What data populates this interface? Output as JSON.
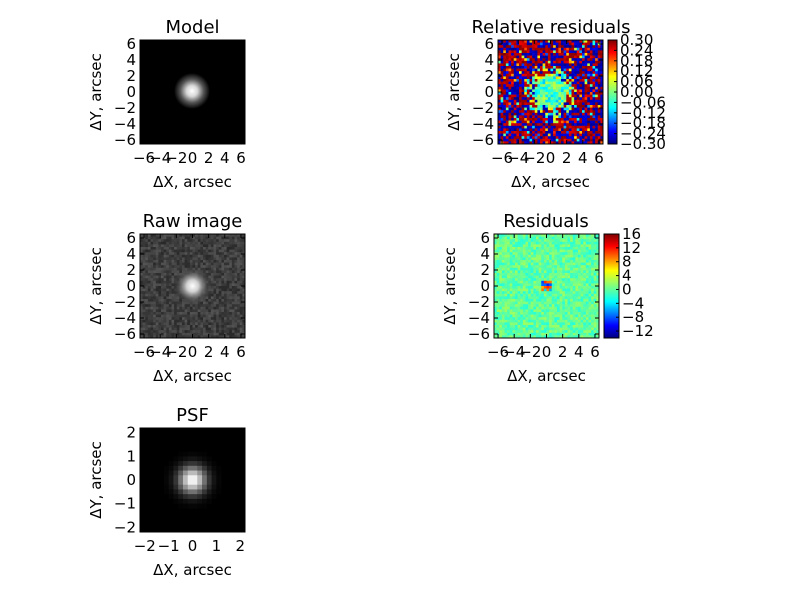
{
  "figure": {
    "colors": {
      "background": "#ffffff",
      "frame": "#000000"
    }
  },
  "chart_data": [
    {
      "id": "model",
      "type": "heatmap",
      "title": "Model",
      "xlabel_prefix": "ΔX",
      "xlabel_suffix": ", arcsec",
      "ylabel_prefix": "ΔY",
      "ylabel_suffix": ", arcsec",
      "xlim": [
        -6.5,
        6.5
      ],
      "ylim": [
        -6.5,
        6.5
      ],
      "xticks": [
        -6,
        -4,
        -2,
        0,
        2,
        4,
        6
      ],
      "yticks": [
        -6,
        -4,
        -2,
        0,
        2,
        4,
        6
      ],
      "xtick_labels": [
        "−6",
        "−4",
        "−2",
        "0",
        "2",
        "4",
        "6"
      ],
      "ytick_labels": [
        "−6",
        "−4",
        "−2",
        "0",
        "2",
        "4",
        "6"
      ],
      "colormap": "gray",
      "source_center": [
        0,
        0
      ],
      "source_sigma_arcsec": 0.9
    },
    {
      "id": "relres",
      "type": "heatmap",
      "title": "Relative residuals",
      "xlabel_prefix": "ΔX",
      "xlabel_suffix": ", arcsec",
      "ylabel_prefix": "ΔY",
      "ylabel_suffix": ", arcsec",
      "xlim": [
        -6.5,
        6.5
      ],
      "ylim": [
        -6.5,
        6.5
      ],
      "xticks": [
        -6,
        -4,
        -2,
        0,
        2,
        4,
        6
      ],
      "yticks": [
        -6,
        -4,
        -2,
        0,
        2,
        4,
        6
      ],
      "xtick_labels": [
        "−6",
        "−4",
        "−2",
        "0",
        "2",
        "4",
        "6"
      ],
      "ytick_labels": [
        "−6",
        "−4",
        "−2",
        "0",
        "2",
        "4",
        "6"
      ],
      "colormap": "jet",
      "colorbar": {
        "range": [
          -0.3,
          0.3
        ],
        "ticks": [
          0.3,
          0.24,
          0.18,
          0.12,
          0.06,
          0.0,
          -0.06,
          -0.12,
          -0.18,
          -0.24,
          -0.3
        ],
        "tick_labels": [
          "0.30",
          "0.24",
          "0.18",
          "0.12",
          "0.06",
          "0.00",
          "−0.06",
          "−0.12",
          "−0.18",
          "−0.24",
          "−0.30"
        ]
      }
    },
    {
      "id": "raw",
      "type": "heatmap",
      "title": "Raw image",
      "xlabel_prefix": "ΔX",
      "xlabel_suffix": ", arcsec",
      "ylabel_prefix": "ΔY",
      "ylabel_suffix": ", arcsec",
      "xlim": [
        -6.5,
        6.5
      ],
      "ylim": [
        -6.5,
        6.5
      ],
      "xticks": [
        -6,
        -4,
        -2,
        0,
        2,
        4,
        6
      ],
      "yticks": [
        -6,
        -4,
        -2,
        0,
        2,
        4,
        6
      ],
      "xtick_labels": [
        "−6",
        "−4",
        "−2",
        "0",
        "2",
        "4",
        "6"
      ],
      "ytick_labels": [
        "−6",
        "−4",
        "−2",
        "0",
        "2",
        "4",
        "6"
      ],
      "colormap": "gray",
      "source_center": [
        0,
        0
      ],
      "source_sigma_arcsec": 0.9
    },
    {
      "id": "res",
      "type": "heatmap",
      "title": "Residuals",
      "xlabel_prefix": "ΔX",
      "xlabel_suffix": ", arcsec",
      "ylabel_prefix": "ΔY",
      "ylabel_suffix": ", arcsec",
      "xlim": [
        -6.5,
        6.5
      ],
      "ylim": [
        -6.5,
        6.5
      ],
      "xticks": [
        -6,
        -4,
        -2,
        0,
        2,
        4,
        6
      ],
      "yticks": [
        -6,
        -4,
        -2,
        0,
        2,
        4,
        6
      ],
      "xtick_labels": [
        "−6",
        "−4",
        "−2",
        "0",
        "2",
        "4",
        "6"
      ],
      "ytick_labels": [
        "−6",
        "−4",
        "−2",
        "0",
        "2",
        "4",
        "6"
      ],
      "colormap": "jet",
      "colorbar": {
        "range": [
          -14,
          16
        ],
        "ticks": [
          16,
          12,
          8,
          4,
          0,
          -4,
          -8,
          -12
        ],
        "tick_labels": [
          "16",
          "12",
          "8",
          "4",
          "0",
          "−4",
          "−8",
          "−12"
        ]
      }
    },
    {
      "id": "psf",
      "type": "heatmap",
      "title": "PSF",
      "xlabel_prefix": "ΔX",
      "xlabel_suffix": ", arcsec",
      "ylabel_prefix": "ΔY",
      "ylabel_suffix": ", arcsec",
      "xlim": [
        -2.2,
        2.2
      ],
      "ylim": [
        -2.2,
        2.2
      ],
      "xticks": [
        -2,
        -1,
        0,
        1,
        2
      ],
      "yticks": [
        -2,
        -1,
        0,
        1,
        2
      ],
      "xtick_labels": [
        "−2",
        "−1",
        "0",
        "1",
        "2"
      ],
      "ytick_labels": [
        "−2",
        "−1",
        "0",
        "1",
        "2"
      ],
      "colormap": "gray",
      "source_center": [
        0,
        0
      ],
      "source_sigma_arcsec": 0.4
    }
  ]
}
